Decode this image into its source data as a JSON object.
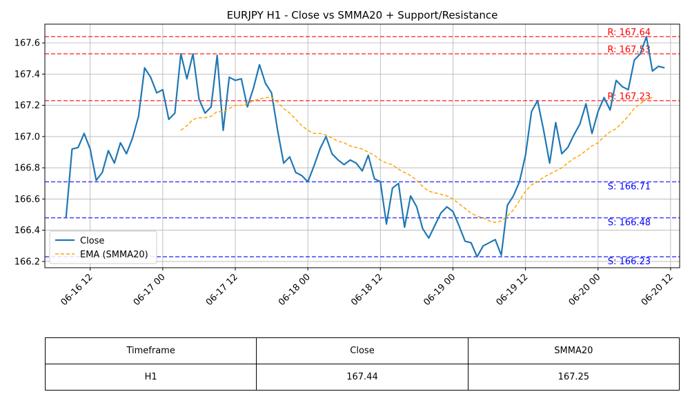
{
  "chart_data": {
    "type": "line",
    "title": "EURJPY H1 - Close vs SMMA20 + Support/Resistance",
    "x_start": "2025-06-16T08:00",
    "x_end": "2025-06-20T11:00",
    "x_step_hours": 1,
    "xlim": [
      "2025-06-16T04:30",
      "2025-06-20T13:30"
    ],
    "ylim": [
      166.16,
      167.72
    ],
    "grid": true,
    "legend_position": "lower-left",
    "x_ticks": [
      {
        "t": "2025-06-16T12:00",
        "label": "06-16 12"
      },
      {
        "t": "2025-06-17T00:00",
        "label": "06-17 00"
      },
      {
        "t": "2025-06-17T12:00",
        "label": "06-17 12"
      },
      {
        "t": "2025-06-18T00:00",
        "label": "06-18 00"
      },
      {
        "t": "2025-06-18T12:00",
        "label": "06-18 12"
      },
      {
        "t": "2025-06-19T00:00",
        "label": "06-19 00"
      },
      {
        "t": "2025-06-19T12:00",
        "label": "06-19 12"
      },
      {
        "t": "2025-06-20T00:00",
        "label": "06-20 00"
      },
      {
        "t": "2025-06-20T12:00",
        "label": "06-20 12"
      }
    ],
    "y_ticks": [
      {
        "v": 166.2,
        "label": "166.2"
      },
      {
        "v": 166.4,
        "label": "166.4"
      },
      {
        "v": 166.6,
        "label": "166.6"
      },
      {
        "v": 166.8,
        "label": "166.8"
      },
      {
        "v": 167.0,
        "label": "167.0"
      },
      {
        "v": 167.2,
        "label": "167.2"
      },
      {
        "v": 167.4,
        "label": "167.4"
      },
      {
        "v": 167.6,
        "label": "167.6"
      }
    ],
    "series": [
      {
        "name": "Close",
        "color": "#1f77b4",
        "style": "solid",
        "start_offset": 0,
        "values": [
          166.48,
          166.92,
          166.93,
          167.02,
          166.92,
          166.72,
          166.77,
          166.91,
          166.83,
          166.96,
          166.89,
          166.99,
          167.13,
          167.44,
          167.38,
          167.28,
          167.3,
          167.11,
          167.15,
          167.53,
          167.37,
          167.53,
          167.24,
          167.15,
          167.19,
          167.52,
          167.04,
          167.38,
          167.36,
          167.37,
          167.19,
          167.31,
          167.46,
          167.34,
          167.28,
          167.04,
          166.83,
          166.87,
          166.77,
          166.75,
          166.71,
          166.81,
          166.92,
          167.0,
          166.89,
          166.85,
          166.82,
          166.85,
          166.83,
          166.78,
          166.88,
          166.73,
          166.71,
          166.44,
          166.67,
          166.7,
          166.42,
          166.62,
          166.55,
          166.41,
          166.35,
          166.43,
          166.51,
          166.55,
          166.52,
          166.43,
          166.33,
          166.32,
          166.23,
          166.3,
          166.32,
          166.34,
          166.24,
          166.56,
          166.62,
          166.71,
          166.88,
          167.16,
          167.23,
          167.04,
          166.83,
          167.09,
          166.89,
          166.93,
          167.01,
          167.08,
          167.21,
          167.02,
          167.16,
          167.25,
          167.17,
          167.36,
          167.32,
          167.3,
          167.49,
          167.53,
          167.64,
          167.42,
          167.45,
          167.44
        ]
      },
      {
        "name": "EMA (SMMA20)",
        "color": "#ffa500",
        "style": "dashed",
        "start_offset": 19,
        "values": [
          167.04,
          167.07,
          167.11,
          167.12,
          167.12,
          167.13,
          167.16,
          167.16,
          167.18,
          167.2,
          167.2,
          167.21,
          167.23,
          167.24,
          167.25,
          167.25,
          167.22,
          167.18,
          167.15,
          167.11,
          167.07,
          167.04,
          167.02,
          167.02,
          167.01,
          166.99,
          166.97,
          166.96,
          166.94,
          166.93,
          166.92,
          166.9,
          166.88,
          166.85,
          166.83,
          166.82,
          166.79,
          166.77,
          166.75,
          166.72,
          166.68,
          166.65,
          166.64,
          166.63,
          166.62,
          166.6,
          166.57,
          166.54,
          166.51,
          166.49,
          166.48,
          166.46,
          166.45,
          166.46,
          166.49,
          166.53,
          166.59,
          166.65,
          166.69,
          166.71,
          166.74,
          166.76,
          166.78,
          166.8,
          166.83,
          166.86,
          166.88,
          166.91,
          166.94,
          166.96,
          167.0,
          167.03,
          167.05,
          167.09,
          167.13,
          167.18,
          167.21,
          167.24,
          167.25
        ]
      }
    ],
    "resistance_levels": [
      {
        "value": 167.64,
        "label": "R: 167.64"
      },
      {
        "value": 167.53,
        "label": "R: 167.53"
      },
      {
        "value": 167.23,
        "label": "R: 167.23"
      }
    ],
    "support_levels": [
      {
        "value": 166.71,
        "label": "S: 166.71"
      },
      {
        "value": 166.48,
        "label": "S: 166.48"
      },
      {
        "value": 166.23,
        "label": "S: 166.23"
      }
    ],
    "colors": {
      "resistance": "#ff0000",
      "support": "#0000ff",
      "grid": "#b0b0b0",
      "axes": "#000000"
    }
  },
  "table": {
    "headers": [
      "Timeframe",
      "Close",
      "SMMA20"
    ],
    "rows": [
      [
        "H1",
        "167.44",
        "167.25"
      ]
    ]
  }
}
